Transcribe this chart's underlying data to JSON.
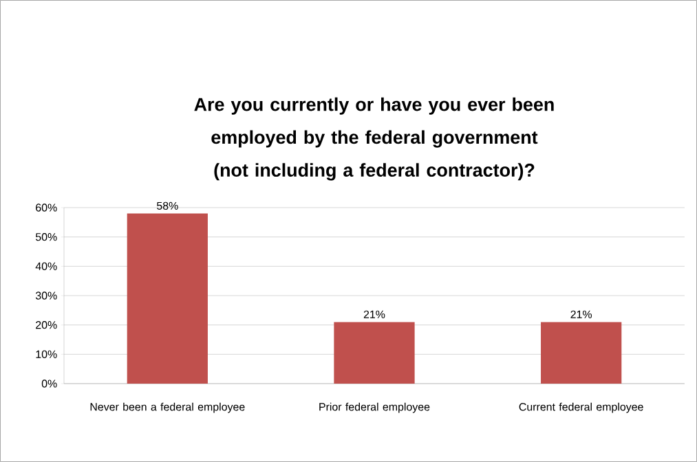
{
  "chart_data": {
    "type": "bar",
    "title": "Are you currently or have you ever been employed by the federal government (not including a federal contractor)?",
    "categories": [
      "Never been a federal employee",
      "Prior federal employee",
      "Current federal employee"
    ],
    "values": [
      58,
      21,
      21
    ],
    "color": "#c0504d",
    "value_labels": [
      "58%",
      "21%",
      "21%"
    ],
    "ylim": [
      0,
      60
    ],
    "yticks": [
      {
        "value": 0,
        "label": "0%"
      },
      {
        "value": 10,
        "label": "10%"
      },
      {
        "value": 20,
        "label": "20%"
      },
      {
        "value": 30,
        "label": "30%"
      },
      {
        "value": 40,
        "label": "40%"
      },
      {
        "value": 50,
        "label": "50%"
      },
      {
        "value": 60,
        "label": "60%"
      }
    ],
    "grid": "y"
  }
}
